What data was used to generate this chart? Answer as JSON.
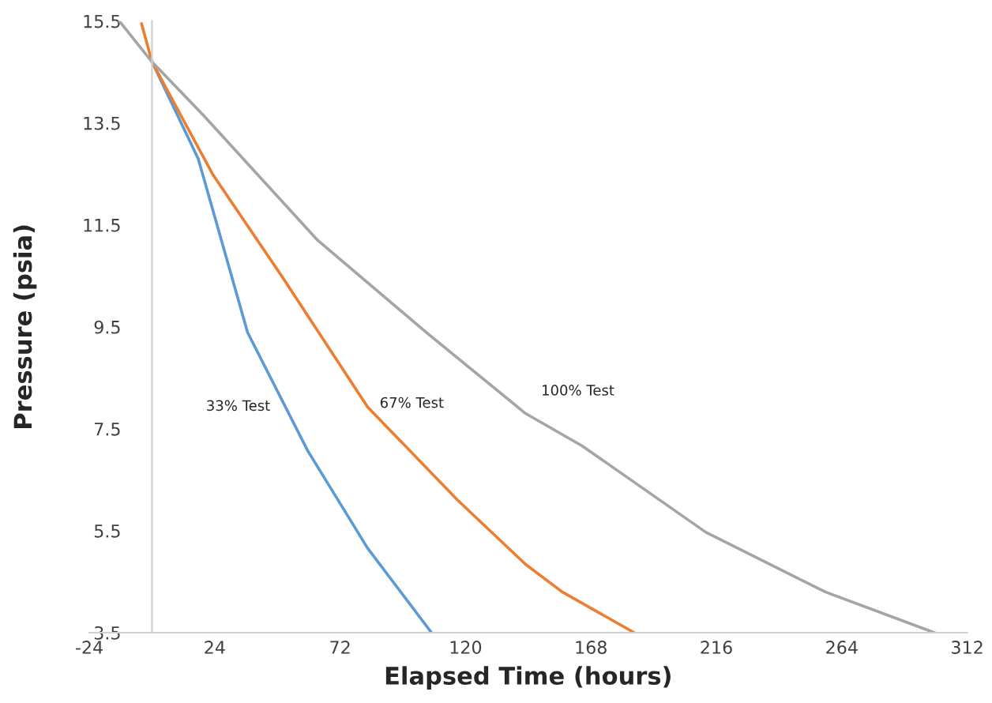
{
  "chart_data": {
    "type": "line",
    "xlabel": "Elapsed Time (hours)",
    "ylabel": "Pressure (psia)",
    "xlim": [
      -24,
      312
    ],
    "xticks": [
      -24,
      24,
      72,
      120,
      168,
      216,
      264,
      312
    ],
    "ylim": [
      3.5,
      15.5
    ],
    "yticks": [
      3.5,
      5.5,
      7.5,
      9.5,
      11.5,
      13.5,
      15.5
    ],
    "grid": false,
    "line_style": "solid",
    "marker": "none",
    "series": [
      {
        "name": "33% Test",
        "color": "#5b9bd5",
        "x": [
          0,
          17.7,
          36.6,
          59.6,
          82.5,
          107
        ],
        "values": [
          14.7,
          12.8,
          9.39,
          7.07,
          5.16,
          3.5
        ]
      },
      {
        "name": "67% Test",
        "color": "#ed7d31",
        "x": [
          -4,
          0,
          23.4,
          50,
          82.5,
          117,
          143,
          157,
          184.6
        ],
        "values": [
          15.45,
          14.7,
          12.48,
          10.47,
          7.93,
          6.1,
          4.84,
          4.3,
          3.5
        ]
      },
      {
        "name": "100% Test",
        "color": "#a5a5a5",
        "x": [
          -12.5,
          0,
          19.7,
          63.4,
          105,
          143,
          164.5,
          212,
          257.7,
          299.5
        ],
        "values": [
          15.5,
          14.7,
          13.65,
          11.2,
          9.39,
          7.8,
          7.17,
          5.47,
          4.3,
          3.5
        ]
      }
    ]
  }
}
